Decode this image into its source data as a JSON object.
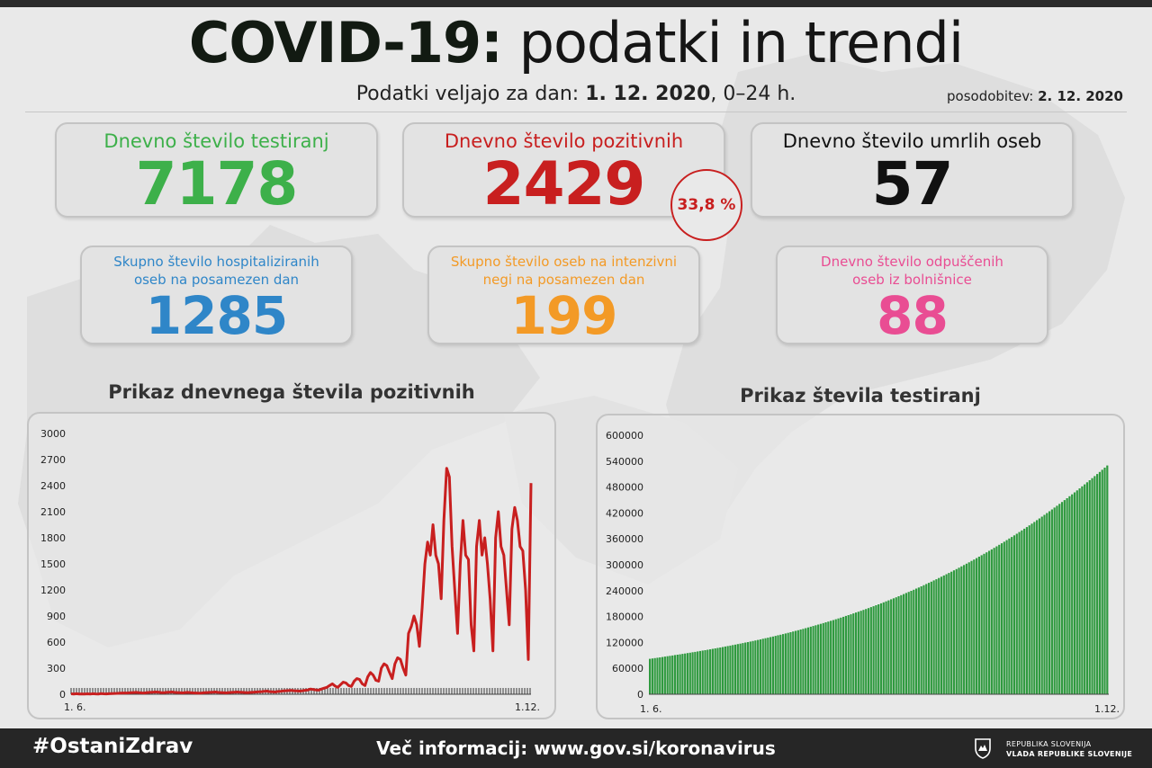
{
  "header": {
    "title_bold": "COVID-19:",
    "title_rest": "podatki in trendi",
    "subtitle_prefix": "Podatki veljajo za dan:",
    "subtitle_date": "1. 12. 2020",
    "subtitle_suffix": ", 0–24 h.",
    "updated_label": "posodobitev:",
    "updated_date": "2. 12. 2020"
  },
  "cards": {
    "tests": {
      "label": "Dnevno število testiranj",
      "value": "7178",
      "color": "#3db04a"
    },
    "positive": {
      "label": "Dnevno število pozitivnih",
      "value": "2429",
      "color": "#c81f1f",
      "percent": "33,8 %"
    },
    "deaths": {
      "label": "Dnevno število umrlih oseb",
      "value": "57",
      "color": "#111111"
    },
    "hospitalized": {
      "label_line1": "Skupno število hospitaliziranih",
      "label_line2": "oseb na posamezen dan",
      "value": "1285",
      "color": "#2f86c8"
    },
    "icu": {
      "label_line1": "Skupno število oseb na intenzivni",
      "label_line2": "negi na posamezen dan",
      "value": "199",
      "color": "#f39a26"
    },
    "discharged": {
      "label_line1": "Dnevno število odpuščenih",
      "label_line2": "oseb iz bolnišnice",
      "value": "88",
      "color": "#e94d93"
    }
  },
  "chart_titles": {
    "left": "Prikaz dnevnega števila pozitivnih",
    "right": "Prikaz števila testiranj"
  },
  "chart_data": [
    {
      "type": "line",
      "title": "Prikaz dnevnega števila pozitivnih",
      "ylim": [
        0,
        3000
      ],
      "yticks": [
        0,
        300,
        600,
        900,
        1200,
        1500,
        1800,
        2100,
        2400,
        2700,
        3000
      ],
      "x_start_label": "1. 6.",
      "x_end_label": "1.12.",
      "color": "#c81f1f",
      "series": [
        {
          "values": [
            5,
            3,
            6,
            2,
            4,
            3,
            5,
            2,
            6,
            4,
            3,
            7,
            5,
            4,
            6,
            8,
            9,
            10,
            12,
            15,
            14,
            16,
            18,
            20,
            22,
            18,
            16,
            15,
            20,
            22,
            24,
            26,
            25,
            20,
            18,
            22,
            24,
            26,
            22,
            20,
            18,
            16,
            20,
            22,
            18,
            16,
            14,
            12,
            15,
            18,
            20,
            22,
            24,
            26,
            22,
            20,
            18,
            16,
            20,
            22,
            24,
            26,
            24,
            22,
            20,
            18,
            22,
            24,
            26,
            28,
            30,
            34,
            36,
            30,
            28,
            26,
            32,
            34,
            38,
            40,
            42,
            44,
            40,
            38,
            36,
            40,
            45,
            50,
            60,
            55,
            50,
            48,
            60,
            70,
            80,
            100,
            120,
            95,
            80,
            110,
            140,
            130,
            100,
            90,
            150,
            180,
            170,
            120,
            100,
            200,
            250,
            220,
            160,
            150,
            300,
            350,
            330,
            250,
            180,
            350,
            420,
            400,
            300,
            220,
            700,
            780,
            900,
            800,
            550,
            1000,
            1500,
            1750,
            1600,
            1950,
            1600,
            1500,
            1100,
            2000,
            2600,
            2500,
            1700,
            1200,
            700,
            1500,
            2000,
            1600,
            1550,
            800,
            500,
            1700,
            2000,
            1600,
            1800,
            1500,
            1100,
            500,
            1800,
            2100,
            1700,
            1600,
            1200,
            800,
            1900,
            2150,
            2000,
            1700,
            1650,
            1200,
            400,
            2429
          ]
        }
      ]
    },
    {
      "type": "bar",
      "title": "Prikaz števila testiranj",
      "ylim": [
        0,
        600000
      ],
      "yticks": [
        0,
        60000,
        120000,
        180000,
        240000,
        300000,
        360000,
        420000,
        480000,
        540000,
        600000
      ],
      "x_start_label": "1. 6.",
      "x_end_label": "1.12.",
      "color": "#2f9a3f",
      "start_value": 82000,
      "end_value": 530000
    }
  ],
  "footer": {
    "hashtag": "#OstaniZdrav",
    "more_info": "Več informacij: www.gov.si/koronavirus",
    "gov_line1": "REPUBLIKA SLOVENIJA",
    "gov_line2": "VLADA REPUBLIKE SLOVENIJE"
  }
}
